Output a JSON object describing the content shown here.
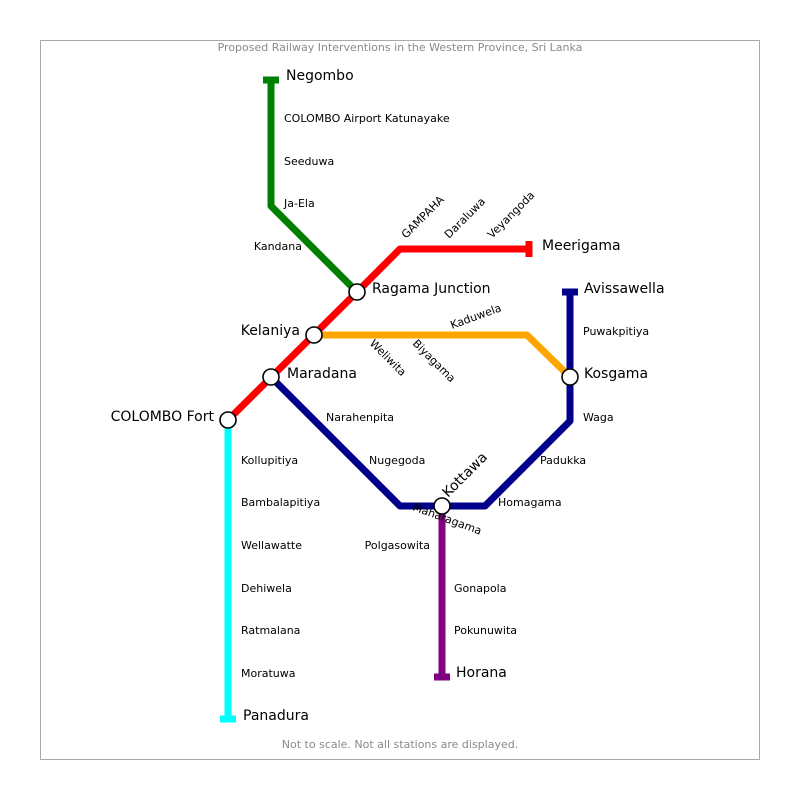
{
  "map": {
    "title": "Proposed Railway Interventions in the Western Province, Sri Lanka",
    "footnote": "Not to scale. Not all stations are displayed."
  },
  "lines": {
    "green": {
      "color": "#008000"
    },
    "red": {
      "color": "#ff0000"
    },
    "orange": {
      "color": "#ffa500"
    },
    "navy": {
      "color": "#00008b"
    },
    "cyan": {
      "color": "#00ffff"
    },
    "purple": {
      "color": "#800080"
    }
  },
  "stations": {
    "negombo": "Negombo",
    "colombo_airport": "COLOMBO Airport Katunayake",
    "seeduwa": "Seeduwa",
    "ja_ela": "Ja-Ela",
    "kandana": "Kandana",
    "ragama": "Ragama Junction",
    "gampaha": "GAMPAHA",
    "daraluwa": "Daraluwa",
    "veyangoda": "Veyangoda",
    "meerigama": "Meerigama",
    "kelaniya": "Kelaniya",
    "kaduwela": "Kaduwela",
    "weliwita": "Weliwita",
    "biyagama": "Biyagama",
    "maradana": "Maradana",
    "colombo_fort": "COLOMBO Fort",
    "narahenpita": "Narahenpita",
    "nugegoda": "Nugegoda",
    "kottawa": "Kottawa",
    "maharagama": "Maharagama",
    "homagama": "Homagama",
    "padukka": "Padukka",
    "waga": "Waga",
    "kosgama": "Kosgama",
    "puwakpitiya": "Puwakpitiya",
    "avissawella": "Avissawella",
    "kollupitiya": "Kollupitiya",
    "bambalapitiya": "Bambalapitiya",
    "wellawatte": "Wellawatte",
    "dehiwela": "Dehiwela",
    "ratmalana": "Ratmalana",
    "moratuwa": "Moratuwa",
    "panadura": "Panadura",
    "polgasowita": "Polgasowita",
    "gonapola": "Gonapola",
    "pokunuwita": "Pokunuwita",
    "horana": "Horana"
  }
}
